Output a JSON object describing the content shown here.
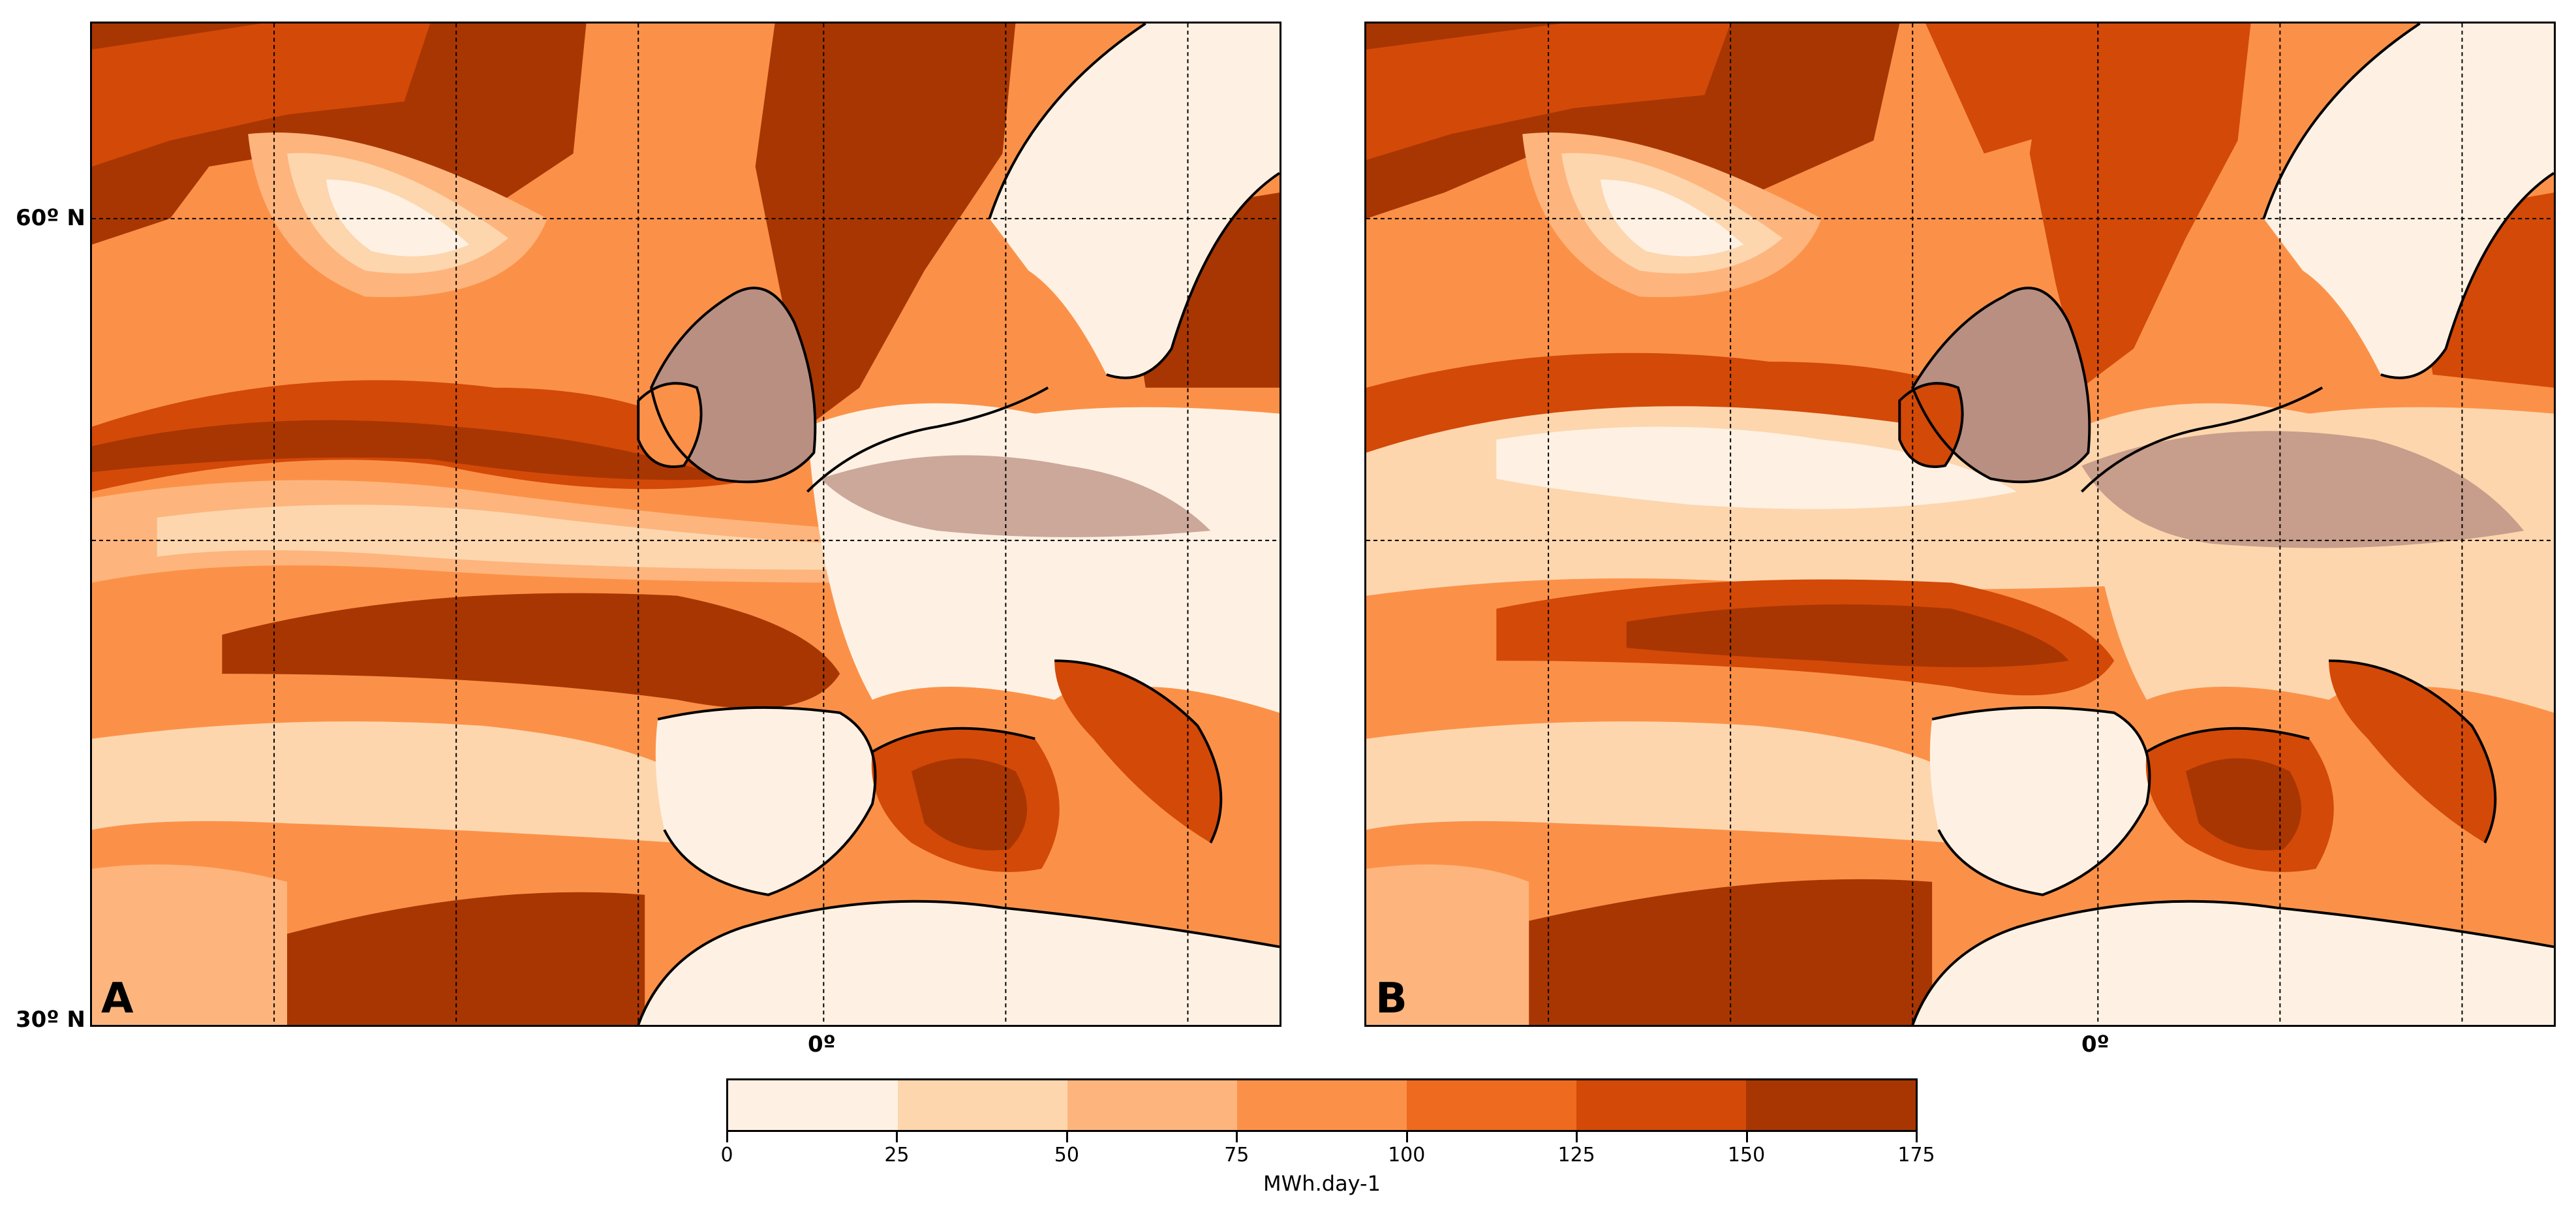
{
  "panels": [
    {
      "id": "panel-a",
      "label": "A"
    },
    {
      "id": "panel-b",
      "label": "B"
    }
  ],
  "axes": {
    "lat_labels": [
      "60º N",
      "30º N"
    ],
    "lon_label": "0º"
  },
  "colorbar": {
    "unit": "MWh.day-1",
    "ticks": [
      "0",
      "25",
      "50",
      "75",
      "100",
      "125",
      "150",
      "175"
    ],
    "colors": [
      "#fef1e3",
      "#fdd6ae",
      "#fdb57d",
      "#fb9148",
      "#ee6a1e",
      "#d34908",
      "#a83603"
    ]
  },
  "map_colors": {
    "land_overlay": "#b98f82",
    "coastline": "#000000",
    "gridline": "#000000"
  }
}
